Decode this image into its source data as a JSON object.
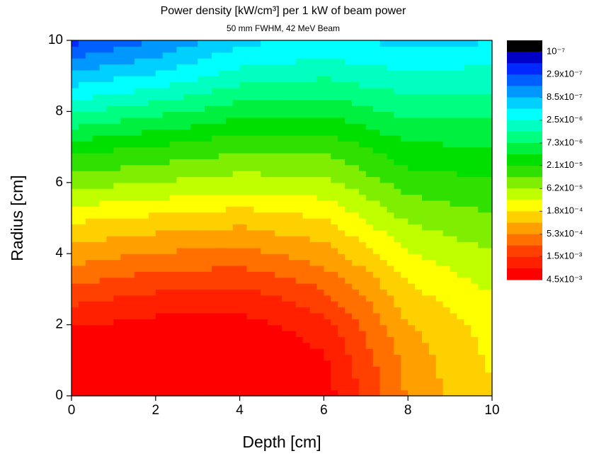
{
  "chart_data": {
    "type": "contour",
    "title": "Power density [kW/cm³] per 1 kW of beam power",
    "subtitle": "50 mm FWHM, 42 MeV Beam",
    "x_label": "Depth [cm]",
    "y_label": "Radius [cm]",
    "x": [
      0,
      1,
      2,
      3,
      4,
      5,
      6,
      7,
      8,
      9,
      10
    ],
    "y": [
      0,
      1,
      2,
      3,
      4,
      5,
      6,
      7,
      8,
      9,
      10
    ],
    "z": [
      [
        0.0056,
        0.006,
        0.0063,
        0.0063,
        0.0063,
        0.0056,
        0.0035,
        0.0013,
        0.0005,
        0.00028,
        0.00018
      ],
      [
        0.005,
        0.0055,
        0.006,
        0.0059,
        0.0056,
        0.0045,
        0.0028,
        0.0011,
        0.00045,
        0.00026,
        0.00017
      ],
      [
        0.0025,
        0.0028,
        0.0032,
        0.0032,
        0.0032,
        0.0025,
        0.0018,
        0.00079,
        0.00032,
        0.00021,
        0.00014
      ],
      [
        0.001,
        0.0012,
        0.0014,
        0.0015,
        0.0016,
        0.0013,
        0.00089,
        0.00045,
        0.0002,
        0.00014,
        0.0001
      ],
      [
        0.0004,
        0.00048,
        0.00056,
        0.0006,
        0.00063,
        0.0005,
        0.0004,
        0.00022,
        0.00011,
        8.3e-05,
        6.3e-05
      ],
      [
        0.00016,
        0.00018,
        0.0002,
        0.00022,
        0.00025,
        0.00021,
        0.00018,
        0.0001,
        5.6e-05,
        4.7e-05,
        4e-05
      ],
      [
        5e-05,
        5.6e-05,
        6.3e-05,
        7.1e-05,
        7.9e-05,
        7.6e-05,
        7.1e-05,
        4.5e-05,
        2.8e-05,
        2.5e-05,
        2.2e-05
      ],
      [
        1.6e-05,
        1.9e-05,
        2.2e-05,
        2.6e-05,
        3.2e-05,
        3.2e-05,
        3.2e-05,
        2.1e-05,
        1.4e-05,
        1.3e-05,
        1.3e-05
      ],
      [
        4e-06,
        5e-06,
        6.3e-06,
        7.9e-06,
        1e-05,
        1.1e-05,
        1.1e-05,
        8.3e-06,
        6.3e-06,
        6.3e-06,
        6.3e-06
      ],
      [
        1e-06,
        1.3e-06,
        1.6e-06,
        2.2e-06,
        3.2e-06,
        3.5e-06,
        4e-06,
        3.3e-06,
        2.8e-06,
        3e-06,
        3.2e-06
      ],
      [
        2.5e-07,
        3.5e-07,
        5e-07,
        7.9e-07,
        1.3e-06,
        1.4e-06,
        1.6e-06,
        1.4e-06,
        1.3e-06,
        1.3e-06,
        1.4e-06
      ]
    ],
    "xlim": [
      0,
      10
    ],
    "ylim": [
      0,
      10
    ],
    "xticks": [
      0,
      2,
      4,
      6,
      8,
      10
    ],
    "yticks": [
      0,
      2,
      4,
      6,
      8,
      10
    ],
    "colorbar_ticks": [
      {
        "value": 1e-07,
        "label": "10⁻⁷"
      },
      {
        "value": 2.9e-07,
        "label": "2.9x10⁻⁷"
      },
      {
        "value": 8.5e-07,
        "label": "8.5x10⁻⁷"
      },
      {
        "value": 2.5e-06,
        "label": "2.5x10⁻⁶"
      },
      {
        "value": 7.3e-06,
        "label": "7.3x10⁻⁶"
      },
      {
        "value": 2.1e-05,
        "label": "2.1x10⁻⁵"
      },
      {
        "value": 6.2e-05,
        "label": "6.2x10⁻⁵"
      },
      {
        "value": 0.00018,
        "label": "1.8x10⁻⁴"
      },
      {
        "value": 0.00053,
        "label": "5.3x10⁻⁴"
      },
      {
        "value": 0.0015,
        "label": "1.5x10⁻³"
      },
      {
        "value": 0.0045,
        "label": "4.5x10⁻³"
      }
    ],
    "colors": [
      "#000000",
      "#0000c8",
      "#0028ff",
      "#0060ff",
      "#0098ff",
      "#00d0ff",
      "#00ffff",
      "#00ffc0",
      "#00ff80",
      "#00f040",
      "#00e000",
      "#30e000",
      "#80ee00",
      "#c0ff00",
      "#ffff00",
      "#ffd000",
      "#ffa000",
      "#ff7000",
      "#ff4000",
      "#ff2000",
      "#ff0000"
    ]
  }
}
